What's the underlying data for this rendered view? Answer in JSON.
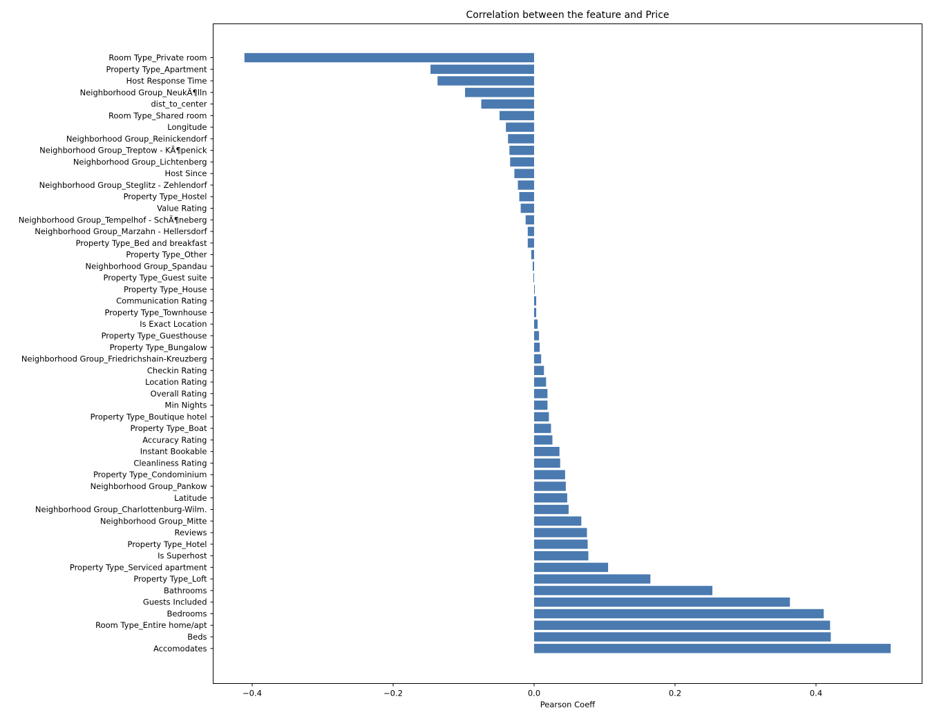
{
  "chart_data": {
    "type": "bar",
    "orientation": "horizontal",
    "title": "Correlation between the feature and Price",
    "xlabel": "Pearson Coeff",
    "ylabel": "",
    "xlim": [
      -0.455,
      0.55
    ],
    "xticks": [
      -0.4,
      -0.2,
      0.0,
      0.2,
      0.4
    ],
    "xtick_labels": [
      "−0.4",
      "−0.2",
      "0.0",
      "0.2",
      "0.4"
    ],
    "bar_color": "#4a7ab0",
    "grid": false,
    "legend": "none",
    "categories": [
      "Room Type_Private room",
      "Property Type_Apartment",
      "Host Response Time",
      "Neighborhood Group_NeukÃ¶lln",
      "dist_to_center",
      "Room Type_Shared room",
      "Longitude",
      "Neighborhood Group_Reinickendorf",
      "Neighborhood Group_Treptow - KÃ¶penick",
      "Neighborhood Group_Lichtenberg",
      "Host Since",
      "Neighborhood Group_Steglitz - Zehlendorf",
      "Property Type_Hostel",
      "Value Rating",
      "Neighborhood Group_Tempelhof - SchÃ¶neberg",
      "Neighborhood Group_Marzahn - Hellersdorf",
      "Property Type_Bed and breakfast",
      "Property Type_Other",
      "Neighborhood Group_Spandau",
      "Property Type_Guest suite",
      "Property Type_House",
      "Communication Rating",
      "Property Type_Townhouse",
      "Is Exact Location",
      "Property Type_Guesthouse",
      "Property Type_Bungalow",
      "Neighborhood Group_Friedrichshain-Kreuzberg",
      "Checkin Rating",
      "Location Rating",
      "Overall Rating",
      "Min Nights",
      "Property Type_Boutique hotel",
      "Property Type_Boat",
      "Accuracy Rating",
      "Instant Bookable",
      "Cleanliness Rating",
      "Property Type_Condominium",
      "Neighborhood Group_Pankow",
      "Latitude",
      "Neighborhood Group_Charlottenburg-Wilm.",
      "Neighborhood Group_Mitte",
      "Reviews",
      "Property Type_Hotel",
      "Is Superhost",
      "Property Type_Serviced apartment",
      "Property Type_Loft",
      "Bathrooms",
      "Guests Included",
      "Bedrooms",
      "Room Type_Entire home/apt",
      "Beds",
      "Accomodates"
    ],
    "values": [
      -0.411,
      -0.147,
      -0.137,
      -0.098,
      -0.075,
      -0.049,
      -0.04,
      -0.037,
      -0.035,
      -0.034,
      -0.028,
      -0.023,
      -0.021,
      -0.019,
      -0.012,
      -0.009,
      -0.009,
      -0.004,
      -0.002,
      -0.001,
      0.001,
      0.003,
      0.003,
      0.005,
      0.007,
      0.008,
      0.01,
      0.014,
      0.017,
      0.019,
      0.019,
      0.021,
      0.024,
      0.026,
      0.036,
      0.037,
      0.044,
      0.045,
      0.047,
      0.049,
      0.067,
      0.075,
      0.076,
      0.077,
      0.105,
      0.165,
      0.253,
      0.363,
      0.411,
      0.42,
      0.421,
      0.506
    ]
  }
}
